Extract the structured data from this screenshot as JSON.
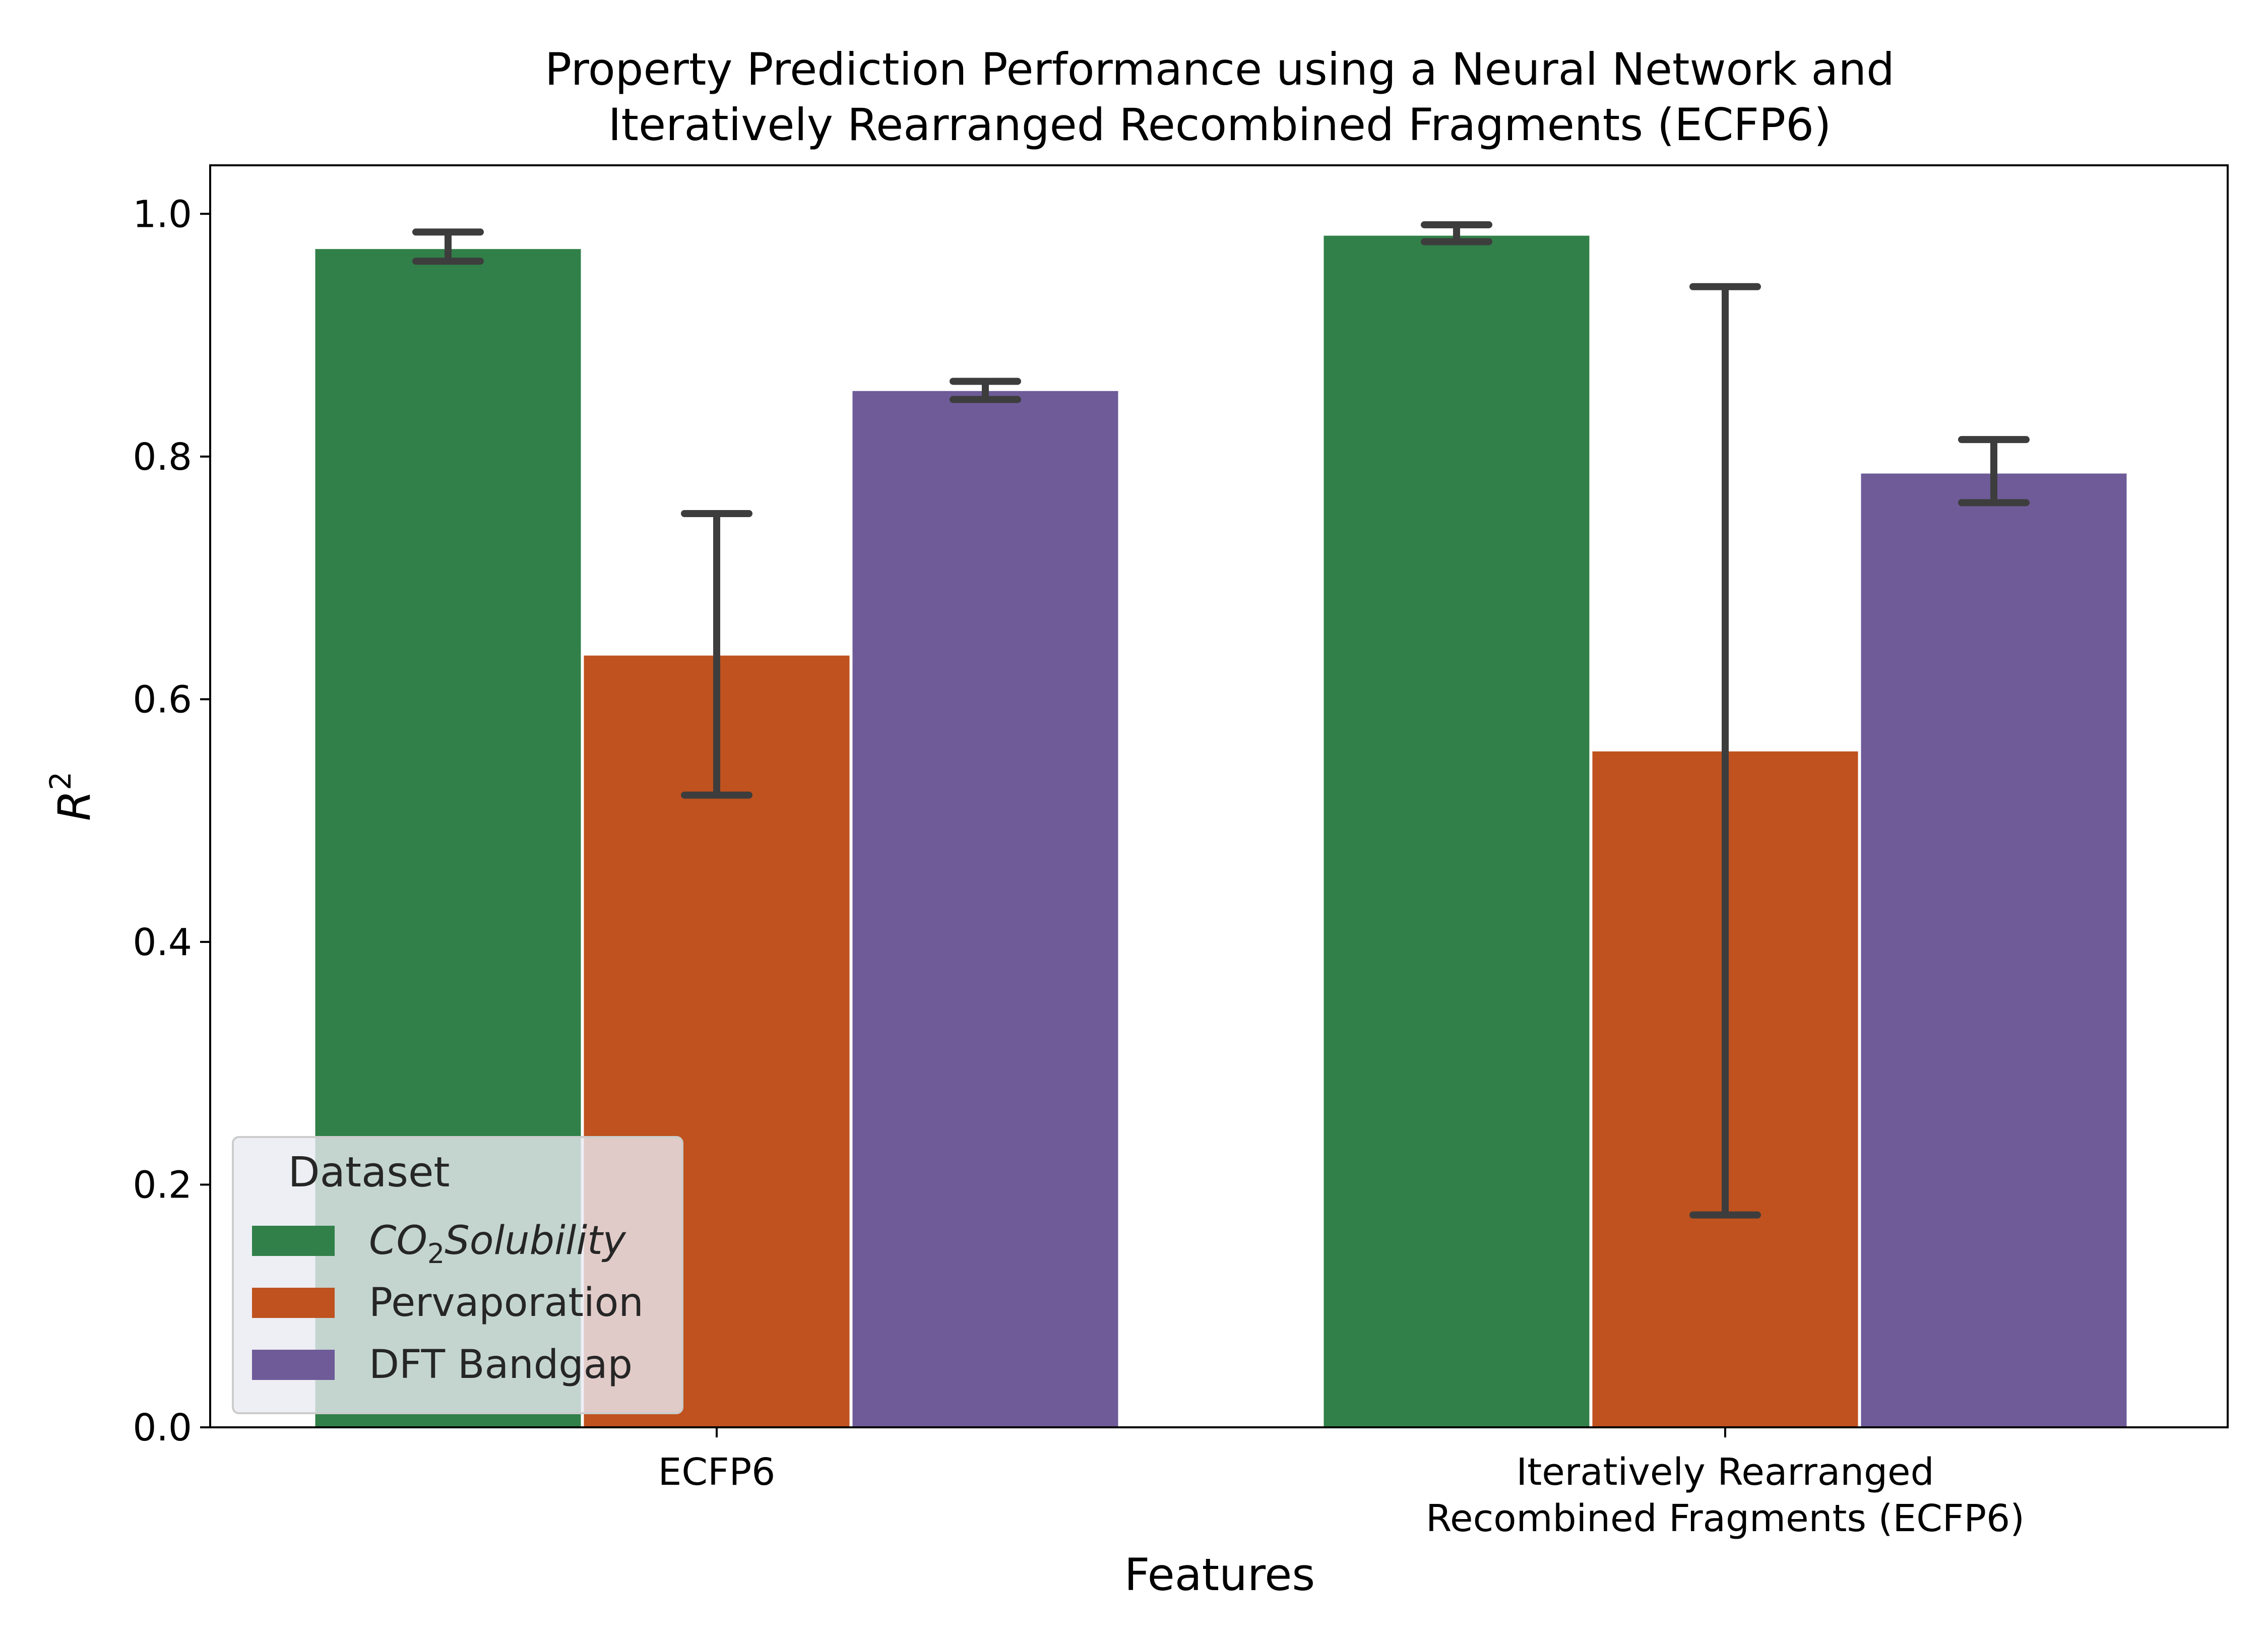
{
  "chart_data": {
    "type": "bar",
    "title": "Property Prediction Performance using a Neural Network and",
    "subtitle": "Iteratively Rearranged Recombined Fragments (ECFP6)",
    "xlabel": "Features",
    "ylabel": {
      "base": "R",
      "sup": "2"
    },
    "ylim": [
      0,
      1.04
    ],
    "yticks": [
      "0.0",
      "0.2",
      "0.4",
      "0.6",
      "0.8",
      "1.0"
    ],
    "categories": [
      {
        "lines": [
          "ECFP6"
        ]
      },
      {
        "lines": [
          "Iteratively Rearranged",
          "Recombined Fragments (ECFP6)"
        ]
      }
    ],
    "series": [
      {
        "name": {
          "base": "CO",
          "sub": "2",
          "rest": "Solubility"
        },
        "color": "#318049",
        "values": [
          0.971,
          0.982
        ],
        "err_low": [
          0.961,
          0.977
        ],
        "err_high": [
          0.985,
          0.991
        ]
      },
      {
        "name": {
          "base": "Pervaporation",
          "sub": "",
          "rest": ""
        },
        "color": "#bf521e",
        "values": [
          0.636,
          0.557
        ],
        "err_low": [
          0.521,
          0.175
        ],
        "err_high": [
          0.753,
          0.94
        ]
      },
      {
        "name": {
          "base": "DFT Bandgap",
          "sub": "",
          "rest": ""
        },
        "color": "#6e5b98",
        "values": [
          0.854,
          0.786
        ],
        "err_low": [
          0.847,
          0.762
        ],
        "err_high": [
          0.862,
          0.814
        ]
      }
    ],
    "legend": {
      "title": "Dataset",
      "placement": "lower-left"
    },
    "grid": false
  }
}
